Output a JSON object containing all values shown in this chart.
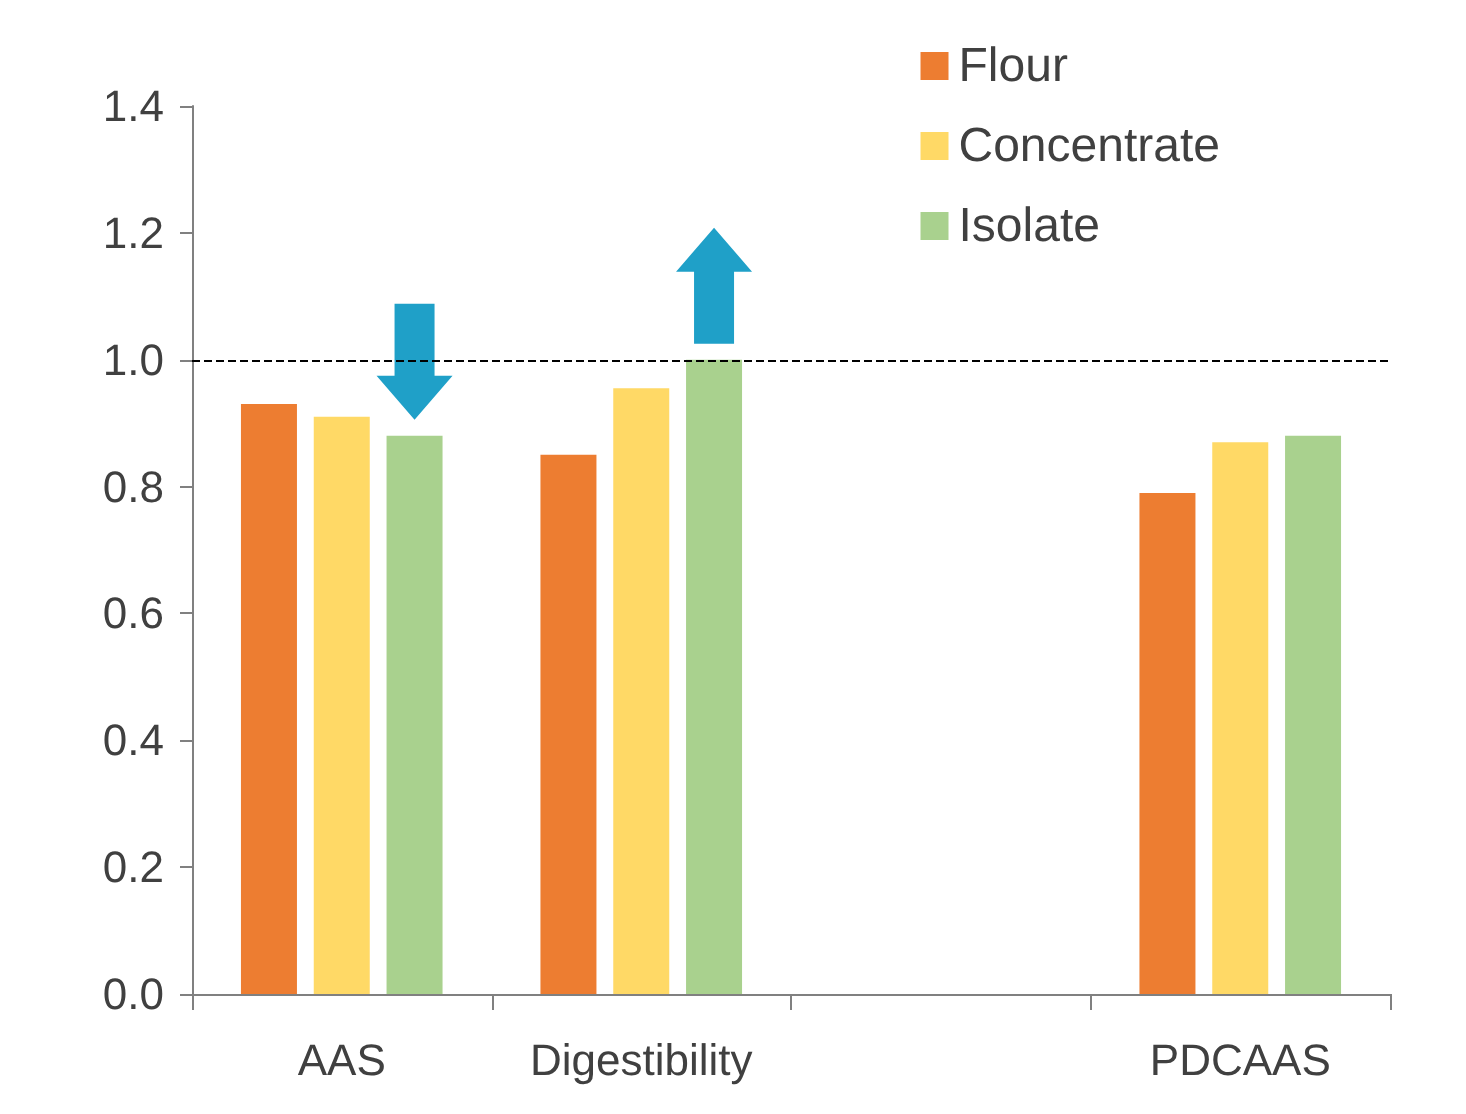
{
  "chart_data": {
    "type": "bar",
    "categories": [
      "AAS",
      "Digestibility",
      null,
      "PDCAAS"
    ],
    "series": [
      {
        "name": "Flour",
        "color": "#ed7d31",
        "values": [
          0.93,
          0.85,
          null,
          0.79
        ]
      },
      {
        "name": "Concentrate",
        "color": "#ffd966",
        "values": [
          0.91,
          0.955,
          null,
          0.87
        ]
      },
      {
        "name": "Isolate",
        "color": "#a9d18e",
        "values": [
          0.88,
          1.0,
          null,
          0.88
        ]
      }
    ],
    "ylim": [
      0,
      1.4
    ],
    "yticks": [
      {
        "value": 0,
        "label": "0.0"
      },
      {
        "value": 0.2,
        "label": "0.2"
      },
      {
        "value": 0.4,
        "label": "0.4"
      },
      {
        "value": 0.6,
        "label": "0.6"
      },
      {
        "value": 0.8,
        "label": "0.8"
      },
      {
        "value": 1.0,
        "label": "1.0"
      },
      {
        "value": 1.2,
        "label": "1.2"
      },
      {
        "value": 1.4,
        "label": "1.4"
      }
    ],
    "ref_lines": [
      {
        "axis": "y",
        "value": 1.0,
        "color": "#000000",
        "line_style": "dashed"
      }
    ],
    "grid": false,
    "legend": "top right"
  }
}
